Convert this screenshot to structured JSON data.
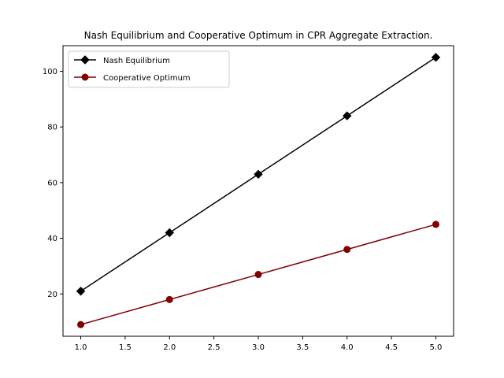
{
  "chart_data": {
    "type": "line",
    "title": "Nash Equilibrium and Cooperative Optimum in CPR Aggregate Extraction.",
    "xlabel": "",
    "ylabel": "",
    "x": [
      1.0,
      2.0,
      3.0,
      4.0,
      5.0
    ],
    "xlim": [
      0.8,
      5.2
    ],
    "ylim": [
      4.8,
      109.2
    ],
    "xticks": [
      "1.0",
      "1.5",
      "2.0",
      "2.5",
      "3.0",
      "3.5",
      "4.0",
      "4.5",
      "5.0"
    ],
    "yticks": [
      "20",
      "40",
      "60",
      "80",
      "100"
    ],
    "grid": false,
    "legend_position": "upper-left",
    "series": [
      {
        "name": "Nash Equilibrium",
        "values": [
          21,
          42,
          63,
          84,
          105
        ],
        "color": "#000000",
        "marker": "diamond"
      },
      {
        "name": "Cooperative Optimum",
        "values": [
          9,
          18,
          27,
          36,
          45
        ],
        "color": "#800000",
        "marker": "circle"
      }
    ]
  }
}
